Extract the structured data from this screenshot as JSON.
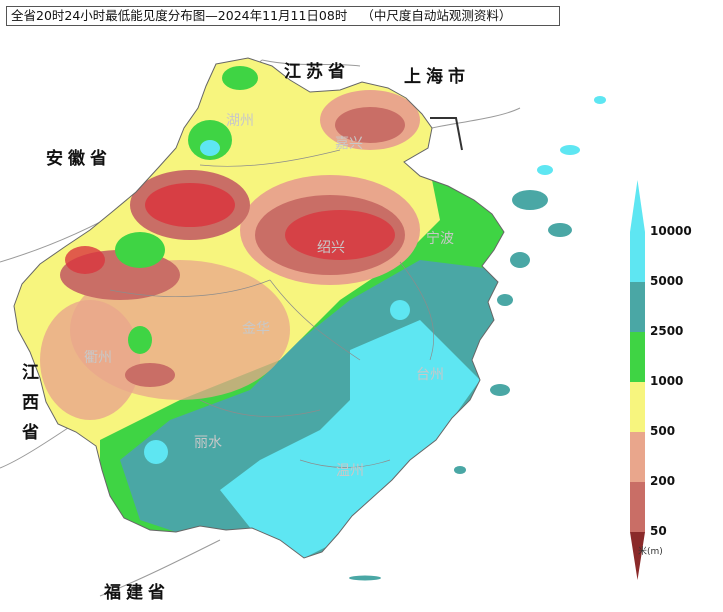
{
  "title": "全省20时24小时最低能见度分布图—2024年11月11日08时",
  "source_note": "（中尺度自动站观测资料）",
  "provinces": {
    "jiangsu": "江苏省",
    "shanghai": "上海市",
    "anhui": "安徽省",
    "jiangxi": "江西省",
    "fujian": "福建省"
  },
  "cities": {
    "huzhou": "湖州",
    "jiaxing": "嘉兴",
    "shaoxing": "绍兴",
    "ningbo": "宁波",
    "jinhua": "金华",
    "quzhou": "衢州",
    "taizhou": "台州",
    "lishui": "丽水",
    "wenzhou": "温州"
  },
  "legend": {
    "unit": "米(m)",
    "levels": [
      {
        "label": "10000",
        "color": "#5ee6f2"
      },
      {
        "label": "5000",
        "color": "#4aa7a5"
      },
      {
        "label": "2500",
        "color": "#3fd444"
      },
      {
        "label": "1000",
        "color": "#f7f57e"
      },
      {
        "label": "500",
        "color": "#e9a68c"
      },
      {
        "label": "200",
        "color": "#c96e66"
      },
      {
        "label": "50",
        "color": "#d9363e"
      }
    ]
  }
}
